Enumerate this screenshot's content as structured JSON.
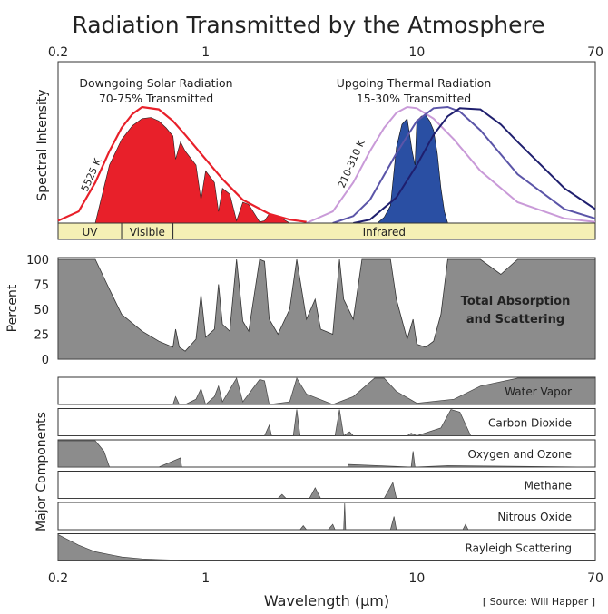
{
  "title": "Radiation Transmitted by the Atmosphere",
  "source": "[ Source: Will Happer ]",
  "chart_data": [
    {
      "type": "area",
      "panel": "spectral-intensity",
      "ylabel": "Spectral Intensity",
      "x_scale": "log",
      "xlim": [
        0.2,
        70
      ],
      "x_ticks": [
        "0.2",
        "1",
        "10",
        "70"
      ],
      "annotations": {
        "solar_title": "Downgoing Solar Radiation",
        "solar_subtitle": "70-75% Transmitted",
        "thermal_title": "Upgoing Thermal Radiation",
        "thermal_subtitle": "15-30% Transmitted",
        "solar_temp": "5525 K",
        "thermal_temp": "210-310 K"
      },
      "bands": [
        {
          "label": "UV",
          "range": [
            0.2,
            0.4
          ]
        },
        {
          "label": "Visible",
          "range": [
            0.4,
            0.7
          ]
        },
        {
          "label": "Infrared",
          "range": [
            0.7,
            70
          ]
        }
      ],
      "colors": {
        "solar": "#e8202a",
        "thermal": "#2a4fa3",
        "band_fill": "#f5f0b5",
        "curve_light": "#c99ad8",
        "curve_mid": "#5b55a8",
        "curve_dark": "#1f1f6e"
      },
      "series": [
        {
          "name": "solar_blackbody",
          "x": [
            0.2,
            0.25,
            0.3,
            0.35,
            0.4,
            0.45,
            0.5,
            0.6,
            0.7,
            0.8,
            1.0,
            1.2,
            1.5,
            2.0,
            2.5,
            3.0
          ],
          "y": [
            0.02,
            0.1,
            0.35,
            0.62,
            0.82,
            0.94,
            1.0,
            0.98,
            0.88,
            0.76,
            0.55,
            0.38,
            0.2,
            0.08,
            0.03,
            0.01
          ]
        },
        {
          "name": "solar_transmitted",
          "x": [
            0.3,
            0.35,
            0.4,
            0.45,
            0.5,
            0.55,
            0.6,
            0.65,
            0.7,
            0.72,
            0.76,
            0.8,
            0.9,
            0.95,
            1.0,
            1.1,
            1.15,
            1.2,
            1.3,
            1.4,
            1.5,
            1.6,
            1.8,
            1.9,
            2.0,
            2.2,
            2.5
          ],
          "y": [
            0.0,
            0.5,
            0.72,
            0.84,
            0.9,
            0.91,
            0.88,
            0.82,
            0.75,
            0.55,
            0.7,
            0.62,
            0.5,
            0.2,
            0.45,
            0.35,
            0.1,
            0.3,
            0.25,
            0.02,
            0.18,
            0.16,
            0.01,
            0.02,
            0.08,
            0.06,
            0.0
          ]
        },
        {
          "name": "thermal_blackbody_310K",
          "x": [
            3,
            4,
            5,
            6,
            7,
            8,
            9,
            10,
            12,
            15,
            20,
            30,
            50,
            70
          ],
          "y": [
            0.0,
            0.1,
            0.35,
            0.62,
            0.82,
            0.95,
            1.0,
            0.99,
            0.9,
            0.72,
            0.45,
            0.18,
            0.04,
            0.01
          ]
        },
        {
          "name": "thermal_blackbody_260K",
          "x": [
            4,
            5,
            6,
            8,
            10,
            12,
            14,
            16,
            20,
            30,
            50,
            70
          ],
          "y": [
            0.0,
            0.06,
            0.2,
            0.6,
            0.88,
            0.99,
            1.0,
            0.96,
            0.8,
            0.42,
            0.12,
            0.04
          ]
        },
        {
          "name": "thermal_blackbody_210K",
          "x": [
            5,
            6,
            8,
            10,
            12,
            14,
            16,
            20,
            25,
            30,
            50,
            70
          ],
          "y": [
            0.0,
            0.03,
            0.22,
            0.5,
            0.76,
            0.92,
            0.99,
            0.98,
            0.85,
            0.7,
            0.3,
            0.12
          ]
        },
        {
          "name": "thermal_transmitted",
          "x": [
            6.5,
            7,
            7.5,
            8,
            8.5,
            9,
            9.5,
            9.8,
            10,
            10.5,
            11,
            11.5,
            12,
            12.5,
            13,
            13.5,
            14
          ],
          "y": [
            0.0,
            0.05,
            0.15,
            0.65,
            0.85,
            0.9,
            0.62,
            0.5,
            0.88,
            0.92,
            0.93,
            0.88,
            0.8,
            0.6,
            0.3,
            0.1,
            0.0
          ]
        }
      ]
    },
    {
      "type": "area",
      "panel": "total-absorption",
      "ylabel": "Percent",
      "label": "Total Absorption and Scattering",
      "y_ticks": [
        "0",
        "25",
        "50",
        "75",
        "100"
      ],
      "ylim": [
        0,
        100
      ],
      "x_scale": "log",
      "xlim": [
        0.2,
        70
      ],
      "series": [
        {
          "name": "total",
          "x": [
            0.2,
            0.3,
            0.35,
            0.4,
            0.5,
            0.6,
            0.7,
            0.72,
            0.75,
            0.8,
            0.9,
            0.95,
            1.0,
            1.1,
            1.15,
            1.2,
            1.3,
            1.4,
            1.5,
            1.6,
            1.8,
            1.9,
            2.0,
            2.2,
            2.5,
            2.7,
            3.0,
            3.3,
            3.5,
            4.0,
            4.3,
            4.5,
            5.0,
            5.5,
            6.0,
            6.5,
            7.0,
            7.5,
            8.0,
            9.0,
            9.6,
            10.0,
            11.0,
            12.0,
            13.0,
            14.0,
            16.0,
            20.0,
            25.0,
            30.0,
            70.0
          ],
          "y": [
            100,
            100,
            70,
            45,
            28,
            18,
            12,
            30,
            12,
            8,
            20,
            65,
            22,
            30,
            75,
            35,
            28,
            100,
            38,
            28,
            100,
            98,
            40,
            25,
            50,
            100,
            40,
            60,
            30,
            25,
            100,
            60,
            40,
            100,
            100,
            100,
            100,
            100,
            60,
            20,
            40,
            15,
            12,
            18,
            45,
            100,
            100,
            100,
            85,
            100,
            100
          ]
        }
      ]
    },
    {
      "type": "area",
      "panel": "major-components",
      "ylabel": "Major Components",
      "xlabel": "Wavelength (µm)",
      "x_ticks": [
        "0.2",
        "1",
        "10",
        "70"
      ],
      "x_scale": "log",
      "xlim": [
        0.2,
        70
      ],
      "series": [
        {
          "name": "Water Vapor",
          "x": [
            0.2,
            0.7,
            0.72,
            0.75,
            0.8,
            0.9,
            0.95,
            1.0,
            1.1,
            1.15,
            1.2,
            1.4,
            1.5,
            1.8,
            1.9,
            2.0,
            2.5,
            2.7,
            3.0,
            4.0,
            5.0,
            6.3,
            7.0,
            8.0,
            10.0,
            15.0,
            20.0,
            30.0,
            70.0
          ],
          "y": [
            0,
            0,
            0.3,
            0,
            0,
            0.2,
            0.6,
            0,
            0.3,
            0.7,
            0.1,
            1.0,
            0.1,
            0.95,
            0.9,
            0.0,
            0.1,
            1.0,
            0.4,
            0.0,
            0.3,
            1.0,
            1.0,
            0.5,
            0.05,
            0.2,
            0.7,
            1.0,
            1.0
          ]
        },
        {
          "name": "Carbon Dioxide",
          "x": [
            0.2,
            1.9,
            2.0,
            2.05,
            2.6,
            2.7,
            2.8,
            4.1,
            4.3,
            4.5,
            4.8,
            5.0,
            9.0,
            9.4,
            10.0,
            13.0,
            14.5,
            16.0,
            18.0,
            70.0
          ],
          "y": [
            0,
            0,
            0.4,
            0,
            0,
            1.0,
            0,
            0,
            1.0,
            0,
            0.15,
            0,
            0,
            0.1,
            0,
            0.3,
            1.0,
            0.9,
            0,
            0
          ]
        },
        {
          "name": "Oxygen and Ozone",
          "x": [
            0.2,
            0.3,
            0.33,
            0.35,
            0.6,
            0.76,
            0.77,
            4.7,
            4.75,
            9.4,
            9.6,
            9.8,
            14.0,
            70.0
          ],
          "y": [
            1,
            1,
            0.6,
            0,
            0,
            0.35,
            0,
            0,
            0.1,
            0,
            0.6,
            0,
            0.05,
            0
          ]
        },
        {
          "name": "Methane",
          "x": [
            0.2,
            2.2,
            2.3,
            2.4,
            3.1,
            3.3,
            3.5,
            7.0,
            7.7,
            8.0,
            70.0
          ],
          "y": [
            0,
            0,
            0.15,
            0,
            0,
            0.4,
            0,
            0,
            0.6,
            0,
            0
          ]
        },
        {
          "name": "Nitrous Oxide",
          "x": [
            0.2,
            2.8,
            2.9,
            3.0,
            3.8,
            4.0,
            4.1,
            4.5,
            4.55,
            4.6,
            7.5,
            7.8,
            8.0,
            16.5,
            17.0,
            17.5,
            70.0
          ],
          "y": [
            0,
            0,
            0.15,
            0,
            0,
            0.2,
            0,
            0,
            1.0,
            0,
            0,
            0.5,
            0,
            0,
            0.2,
            0,
            0
          ]
        },
        {
          "name": "Rayleigh Scattering",
          "x": [
            0.2,
            0.25,
            0.3,
            0.4,
            0.5,
            0.6,
            0.8,
            1.0,
            1.5,
            70.0
          ],
          "y": [
            1.0,
            0.6,
            0.35,
            0.15,
            0.08,
            0.05,
            0.02,
            0.01,
            0.0,
            0.0
          ]
        }
      ]
    }
  ]
}
